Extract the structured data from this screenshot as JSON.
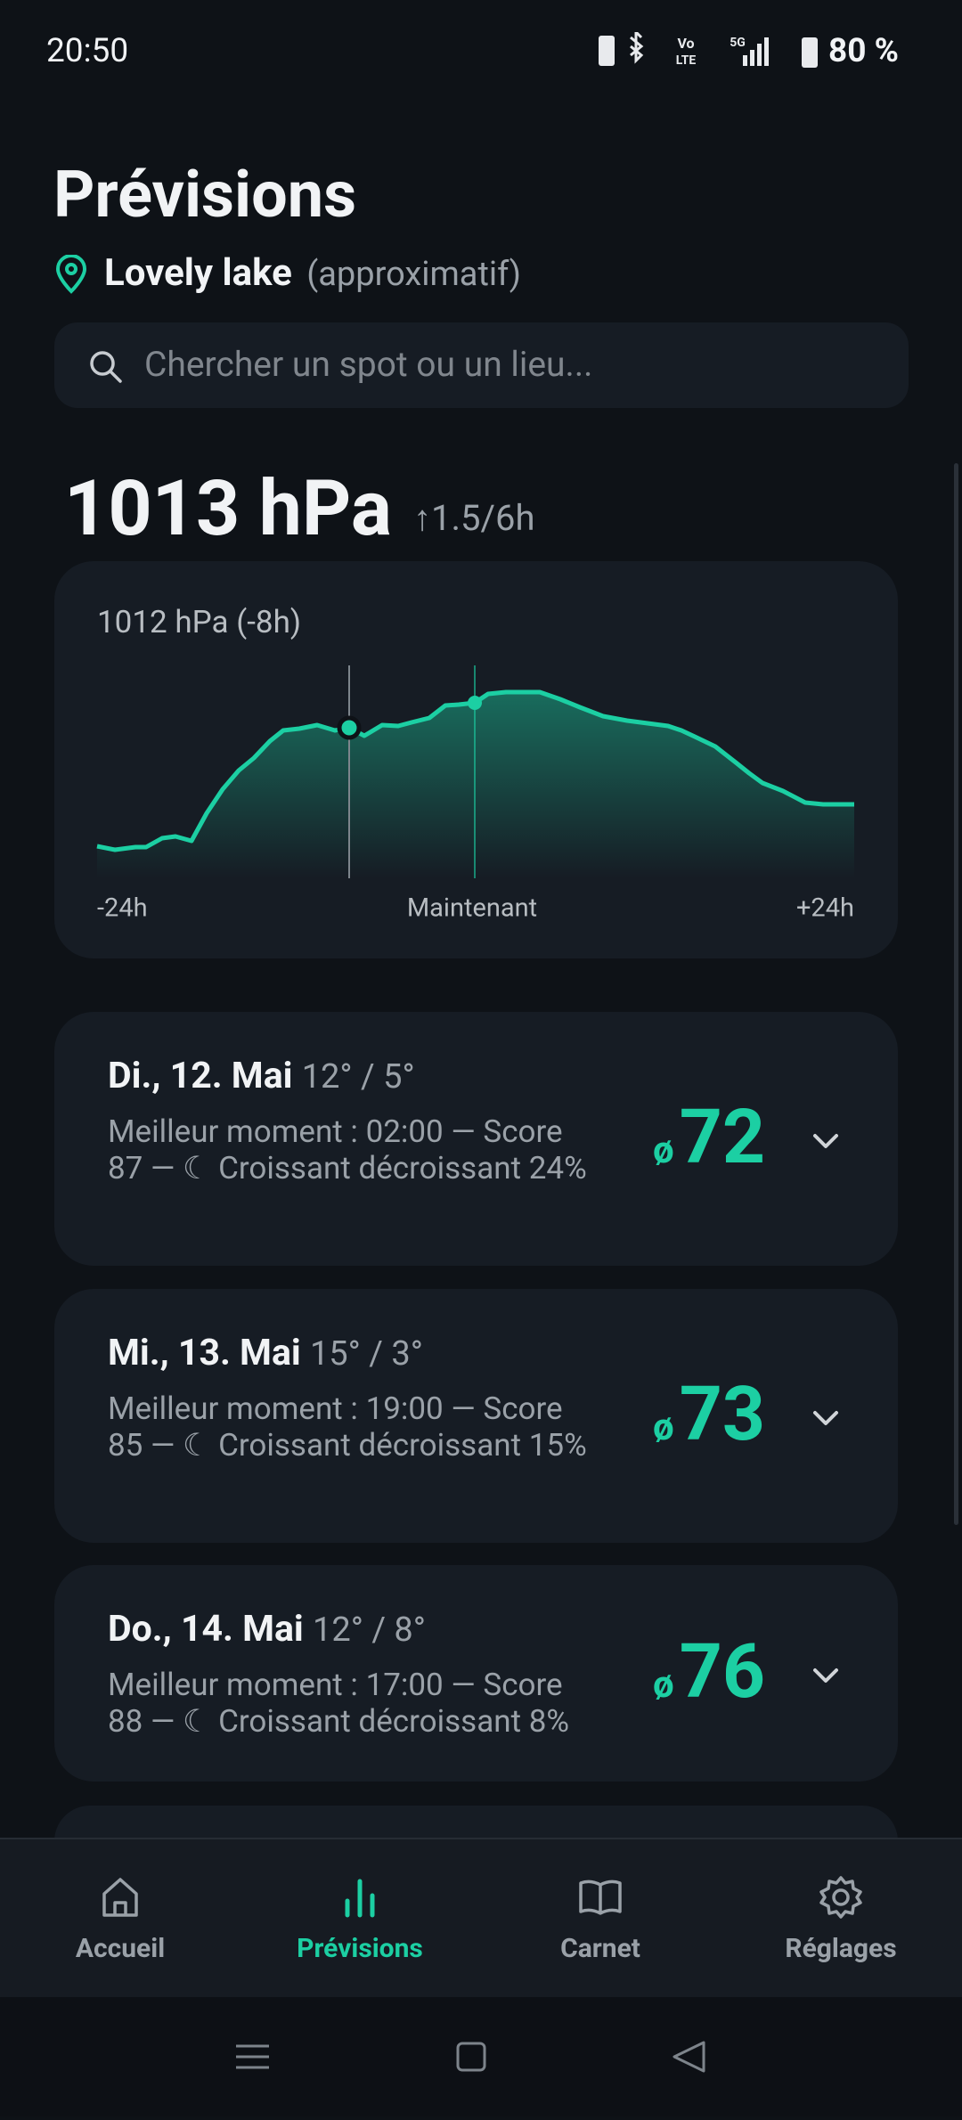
{
  "status": {
    "time": "20:50",
    "battery": "80 %"
  },
  "header": {
    "title": "Prévisions",
    "location": "Lovely lake",
    "location_note": "(approximatif)"
  },
  "search": {
    "placeholder": "Chercher un spot ou un lieu..."
  },
  "pressure": {
    "value": "1013 hPa",
    "trend": "↑1.5/6h"
  },
  "pressure_card": {
    "label": "1012 hPa (-8h)",
    "x_labels": [
      "-24h",
      "Maintenant",
      "+24h"
    ]
  },
  "days": [
    {
      "title": "Di., 12. Mai",
      "temps": "12° / 5°",
      "detail": "Meilleur moment : 02:00 — Score 87 — ☾ Croissant décroissant 24%",
      "score_symbol": "ø",
      "score": 72
    },
    {
      "title": "Mi., 13. Mai",
      "temps": "15° / 3°",
      "detail": "Meilleur moment : 19:00 — Score 85 — ☾ Croissant décroissant 15%",
      "score_symbol": "ø",
      "score": 73
    },
    {
      "title": "Do., 14. Mai",
      "temps": "12° / 8°",
      "detail": "Meilleur moment : 17:00 — Score 88 — ☾ Croissant décroissant 8%",
      "score_symbol": "ø",
      "score": 76
    }
  ],
  "nav": {
    "items": [
      "Accueil",
      "Prévisions",
      "Carnet",
      "Réglages"
    ],
    "active": 1
  }
}
